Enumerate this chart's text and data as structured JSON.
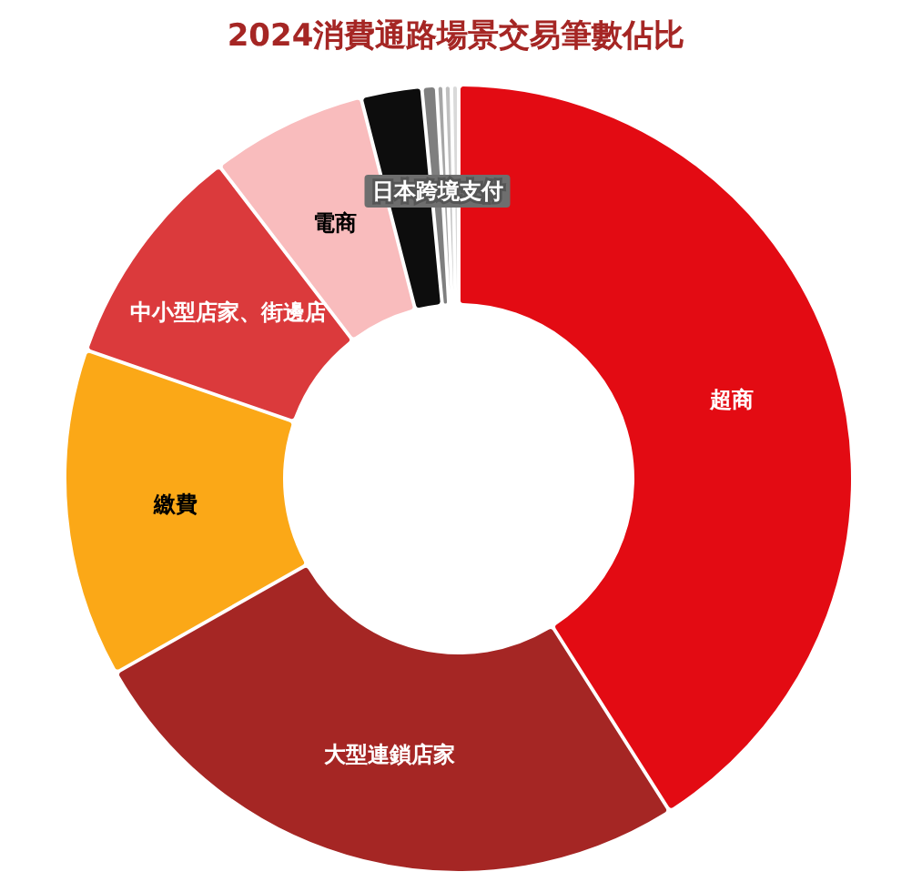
{
  "chart_data": {
    "type": "donut",
    "title": "2024消費通路場景交易筆數佔比",
    "categories": [
      "超商",
      "大型連鎖店家",
      "繳費",
      "中小型店家、街邊店",
      "電商",
      null,
      "日本跨境支付",
      null,
      null,
      null
    ],
    "values": [
      41.0,
      25.8,
      13.5,
      9.3,
      6.4,
      2.5,
      0.6,
      0.3,
      0.3,
      0.3
    ],
    "colors": [
      "#e30b13",
      "#a52624",
      "#fba817",
      "#db3a3c",
      "#f9bcbd",
      "#0d0d0d",
      "#7f7f7f",
      "#a6a6a6",
      "#c0c0c0",
      "#d9d9d9"
    ]
  }
}
